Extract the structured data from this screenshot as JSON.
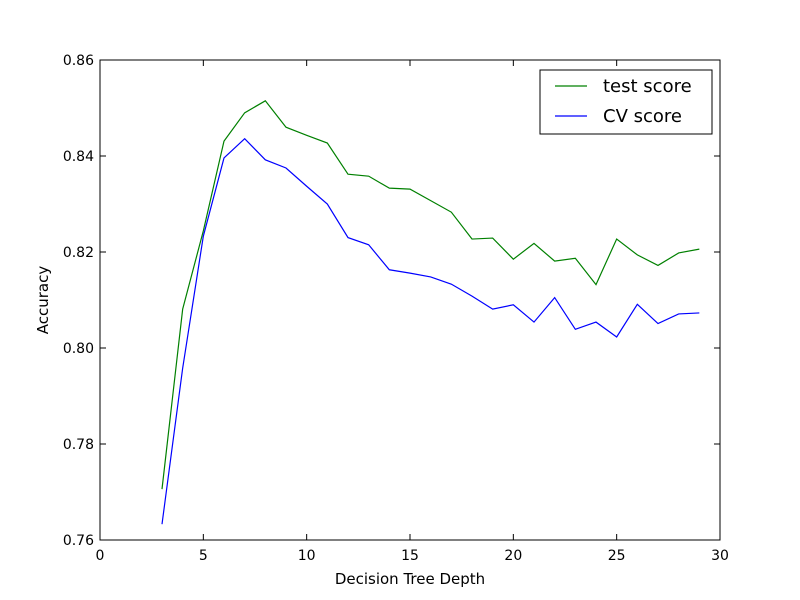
{
  "chart_data": {
    "type": "line",
    "xlabel": "Decision Tree Depth",
    "ylabel": "Accuracy",
    "xlim": [
      0,
      30
    ],
    "ylim": [
      0.76,
      0.86
    ],
    "xticks": [
      "0",
      "5",
      "10",
      "15",
      "20",
      "25",
      "30"
    ],
    "yticks": [
      "0.76",
      "0.78",
      "0.80",
      "0.82",
      "0.84",
      "0.86"
    ],
    "grid": false,
    "legend_position": "top-right",
    "x": [
      3,
      4,
      5,
      6,
      7,
      8,
      9,
      10,
      11,
      12,
      13,
      14,
      15,
      16,
      17,
      18,
      19,
      20,
      21,
      22,
      23,
      24,
      25,
      26,
      27,
      28,
      29
    ],
    "series": [
      {
        "name": "test score",
        "color": "#008000",
        "values": [
          0.7706,
          0.8081,
          0.8244,
          0.8431,
          0.849,
          0.8515,
          0.846,
          0.8443,
          0.8427,
          0.8362,
          0.8358,
          0.8333,
          0.8331,
          0.8307,
          0.8283,
          0.8227,
          0.8229,
          0.8185,
          0.8218,
          0.8181,
          0.8187,
          0.8132,
          0.8227,
          0.8194,
          0.8172,
          0.8198,
          0.8206
        ]
      },
      {
        "name": "CV score",
        "color": "#0000ff",
        "values": [
          0.7633,
          0.7958,
          0.8233,
          0.8396,
          0.8436,
          0.8392,
          0.8375,
          0.8337,
          0.83,
          0.823,
          0.8215,
          0.8163,
          0.8156,
          0.8148,
          0.8133,
          0.8108,
          0.8081,
          0.809,
          0.8054,
          0.8105,
          0.8039,
          0.8054,
          0.8023,
          0.8091,
          0.8051,
          0.8071,
          0.8073
        ]
      }
    ]
  }
}
